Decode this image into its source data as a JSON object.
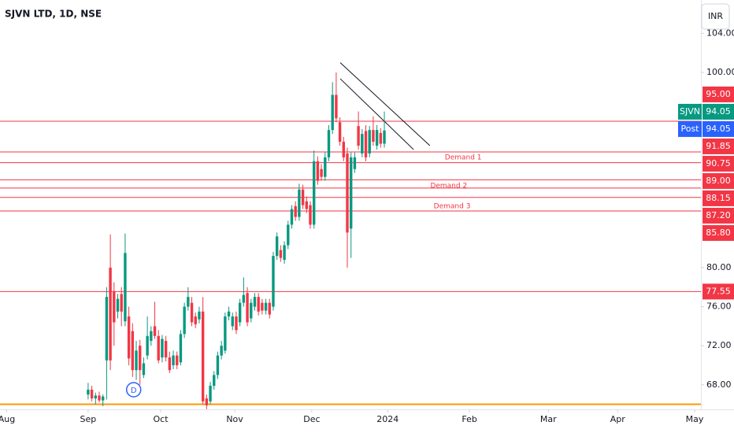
{
  "chart_data": {
    "type": "candlestick",
    "title": "SJVN LTD, 1D, NSE",
    "currency": "INR",
    "up_color": "#089981",
    "down_color": "#f23645",
    "grid": false,
    "xlim": [
      -23.8,
      165.5
    ],
    "ylim": [
      65.48,
      107.42
    ],
    "xticks": [
      {
        "value": -22,
        "label": "Aug"
      },
      {
        "value": 0,
        "label": "Sep"
      },
      {
        "value": 19.6,
        "label": "Oct"
      },
      {
        "value": 39.6,
        "label": "Nov"
      },
      {
        "value": 60.4,
        "label": "Dec"
      },
      {
        "value": 80.9,
        "label": "2024"
      },
      {
        "value": 103,
        "label": "Feb"
      },
      {
        "value": 124.3,
        "label": "Mar"
      },
      {
        "value": 143,
        "label": "Apr"
      },
      {
        "value": 163.8,
        "label": "May"
      }
    ],
    "yticks": [
      {
        "value": 104,
        "label": "104.00"
      },
      {
        "value": 100,
        "label": "100.00"
      },
      {
        "value": 80,
        "label": "80.00"
      },
      {
        "value": 76,
        "label": "76.00"
      },
      {
        "value": 72,
        "label": "72.00"
      },
      {
        "value": 68,
        "label": "68.00"
      }
    ],
    "x": [
      0,
      1,
      2,
      3,
      4,
      5,
      6,
      7,
      8,
      9,
      10,
      11,
      12,
      13,
      14,
      15,
      16,
      17,
      18,
      19,
      20,
      21,
      22,
      23,
      24,
      25,
      26,
      27,
      28,
      29,
      30,
      31,
      32,
      33,
      34,
      35,
      36,
      37,
      38,
      39,
      40,
      41,
      42,
      43,
      44,
      45,
      46,
      47,
      48,
      49,
      50,
      51,
      52,
      53,
      54,
      55,
      56,
      57,
      58,
      59,
      60,
      61,
      62,
      63,
      64,
      65,
      66,
      67,
      68,
      69,
      70,
      71,
      72,
      73,
      74,
      75,
      76,
      77,
      78,
      79,
      80
    ],
    "open": [
      67,
      67.5,
      66.6,
      66.9,
      66.4,
      70.5,
      80,
      77.6,
      75.5,
      77.3,
      74.5,
      75,
      73.5,
      69.5,
      72,
      69,
      71,
      72.5,
      74,
      73,
      70.8,
      72.5,
      70.8,
      70,
      71,
      70.3,
      73.2,
      76,
      76.4,
      75,
      74.7,
      75.5,
      66.6,
      66.3,
      67.9,
      69,
      71,
      71.5,
      75,
      74,
      75,
      74.4,
      76.4,
      77.4,
      74.8,
      76,
      77,
      76.4,
      75.6,
      76.4,
      76,
      81.2,
      81.8,
      80.8,
      82.3,
      84.4,
      86.3,
      85.2,
      88,
      86.8,
      86.4,
      84.4,
      90.9,
      90.1,
      89.3,
      91.3,
      94.1,
      97.7,
      94.9,
      92.9,
      91.7,
      84,
      90.1,
      94.5,
      91.7,
      94,
      91.7,
      94.1,
      92.5,
      93.8,
      92.7
    ],
    "high": [
      68.2,
      67.9,
      67.2,
      67.3,
      67,
      78,
      83.4,
      78.5,
      77.3,
      78,
      83.5,
      76,
      74.3,
      72.5,
      72.6,
      70.8,
      75,
      74,
      76.5,
      73.6,
      73.1,
      73,
      71.4,
      71.5,
      71.4,
      73.6,
      76.4,
      78,
      77,
      75.4,
      76,
      77,
      67,
      68.3,
      69.4,
      71.4,
      72.5,
      75.4,
      76,
      75.4,
      75.5,
      76.8,
      79,
      78,
      76.8,
      77.4,
      77.4,
      76.8,
      76.8,
      76.8,
      81.6,
      83.6,
      82.3,
      82.7,
      84.8,
      86.4,
      86.8,
      88.6,
      88.5,
      87.3,
      86.8,
      92,
      91.4,
      90.6,
      91.8,
      94.6,
      99,
      100,
      95.4,
      93.4,
      92.3,
      91.8,
      91.8,
      96,
      94.2,
      94.6,
      94.5,
      95.5,
      94.6,
      94.3,
      96
    ],
    "low": [
      66.5,
      66.3,
      66,
      66.2,
      65.8,
      66.5,
      69.5,
      72,
      74.8,
      74,
      74,
      70,
      68.8,
      68.5,
      68,
      68.7,
      70.6,
      72,
      72.7,
      70.2,
      70.3,
      70.4,
      69.2,
      69.6,
      69.6,
      70,
      72.8,
      75.6,
      74,
      73.8,
      74.3,
      66,
      65.5,
      66,
      67.5,
      68.6,
      70.6,
      71.2,
      74.6,
      73.6,
      73.2,
      74,
      76,
      74,
      74.4,
      75.6,
      75.1,
      75.2,
      75.2,
      74.8,
      75.6,
      80.8,
      80.6,
      80.4,
      81.9,
      84,
      84.8,
      84.8,
      86,
      85.6,
      84,
      84,
      88.5,
      88.9,
      88.9,
      90.9,
      93.7,
      94.9,
      92.5,
      90.9,
      80,
      81,
      89.7,
      92.1,
      91.3,
      90.9,
      91.3,
      92.5,
      92.1,
      92.3,
      92.3
    ],
    "close": [
      67.5,
      66.6,
      66.9,
      66.4,
      66.8,
      77,
      70.5,
      74.4,
      76.8,
      75.5,
      81.5,
      70.7,
      69.5,
      71.5,
      69.5,
      70.2,
      73,
      73.5,
      73,
      70.5,
      72.7,
      70.8,
      69.5,
      71,
      70,
      73.2,
      76,
      77,
      74.4,
      74.2,
      75.5,
      66.3,
      65.9,
      67.9,
      69,
      71,
      72,
      75,
      75.5,
      75,
      73.6,
      76.4,
      77.2,
      74.4,
      76.4,
      77,
      75.5,
      75.6,
      76.4,
      75.2,
      81.2,
      83.2,
      81,
      82.3,
      84.4,
      86,
      85.2,
      88,
      86.4,
      86,
      84.4,
      90.9,
      88.9,
      89.3,
      91.3,
      94.1,
      97.7,
      95.3,
      92.9,
      91.3,
      83.6,
      91.3,
      91.3,
      92.5,
      93.7,
      91.3,
      94.1,
      92.9,
      94.1,
      92.7,
      94.05
    ],
    "levels": [
      {
        "value": 95,
        "label": "95.00",
        "color": "#f23645"
      },
      {
        "value": 91.85,
        "label": "91.85",
        "color": "#f23645"
      },
      {
        "value": 90.75,
        "label": "90.75",
        "color": "#f23645"
      },
      {
        "value": 89,
        "label": "89.00",
        "color": "#f23645"
      },
      {
        "value": 88.15,
        "label": "88.15",
        "color": "#f23645"
      },
      {
        "value": 87.2,
        "label": "87.20",
        "color": "#f23645"
      },
      {
        "value": 85.8,
        "label": "85.80",
        "color": "#f23645"
      },
      {
        "value": 77.55,
        "label": "77.55",
        "color": "#f23645"
      },
      {
        "value": 66,
        "color": "#ff9800"
      }
    ],
    "last_prices": [
      {
        "name": "Post",
        "value": 94.05,
        "color": "#2962ff"
      },
      {
        "name": "SJVN",
        "value": 94.05,
        "color": "#089981"
      }
    ],
    "annotations": [
      {
        "text": "Demand 1",
        "x": 101.3,
        "y": 91.3
      },
      {
        "text": "Demand 2",
        "x": 97.4,
        "y": 88.4
      },
      {
        "text": "Demand 3",
        "x": 98.3,
        "y": 86.3
      }
    ],
    "trendlines": [
      [
        68.1,
        101,
        92.3,
        92.5
      ],
      [
        68.1,
        99.35,
        87.9,
        92.1
      ]
    ],
    "markers": [
      {
        "label": "D",
        "x": 12.3
      }
    ]
  }
}
